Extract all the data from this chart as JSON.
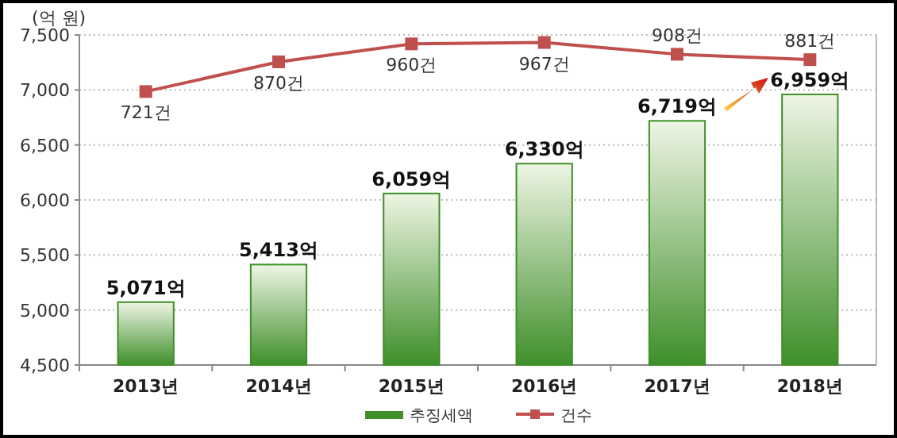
{
  "chart_data": {
    "type": "bar",
    "ylabel": "(억 원)",
    "categories": [
      "2013년",
      "2014년",
      "2015년",
      "2016년",
      "2017년",
      "2018년"
    ],
    "series": [
      {
        "name": "추징세액",
        "color": "#3f8f2a",
        "values": [
          5071,
          5413,
          6059,
          6330,
          6719,
          6959
        ],
        "value_labels": [
          "5,071억",
          "5,413억",
          "6,059억",
          "6,330억",
          "6,719억",
          "6,959억"
        ]
      },
      {
        "name": "건수",
        "type": "line",
        "axis": "y2",
        "color": "#c0504d",
        "values": [
          721,
          870,
          960,
          967,
          908,
          881
        ],
        "value_labels": [
          "721건",
          "870건",
          "960건",
          "967건",
          "908건",
          "881건"
        ]
      }
    ],
    "ylim": [
      4500,
      7500
    ],
    "yticks": [
      {
        "value": 4500,
        "label": "4,500"
      },
      {
        "value": 5000,
        "label": "5,000"
      },
      {
        "value": 5500,
        "label": "5,500"
      },
      {
        "value": 6000,
        "label": "6,000"
      },
      {
        "value": 6500,
        "label": "6,500"
      },
      {
        "value": 7000,
        "label": "7,000"
      },
      {
        "value": 7500,
        "label": "7,500"
      }
    ],
    "y2lim": [
      -650,
      1005
    ],
    "grid": "y",
    "legend": "bottom",
    "marker": "square",
    "line_style": "solid"
  }
}
